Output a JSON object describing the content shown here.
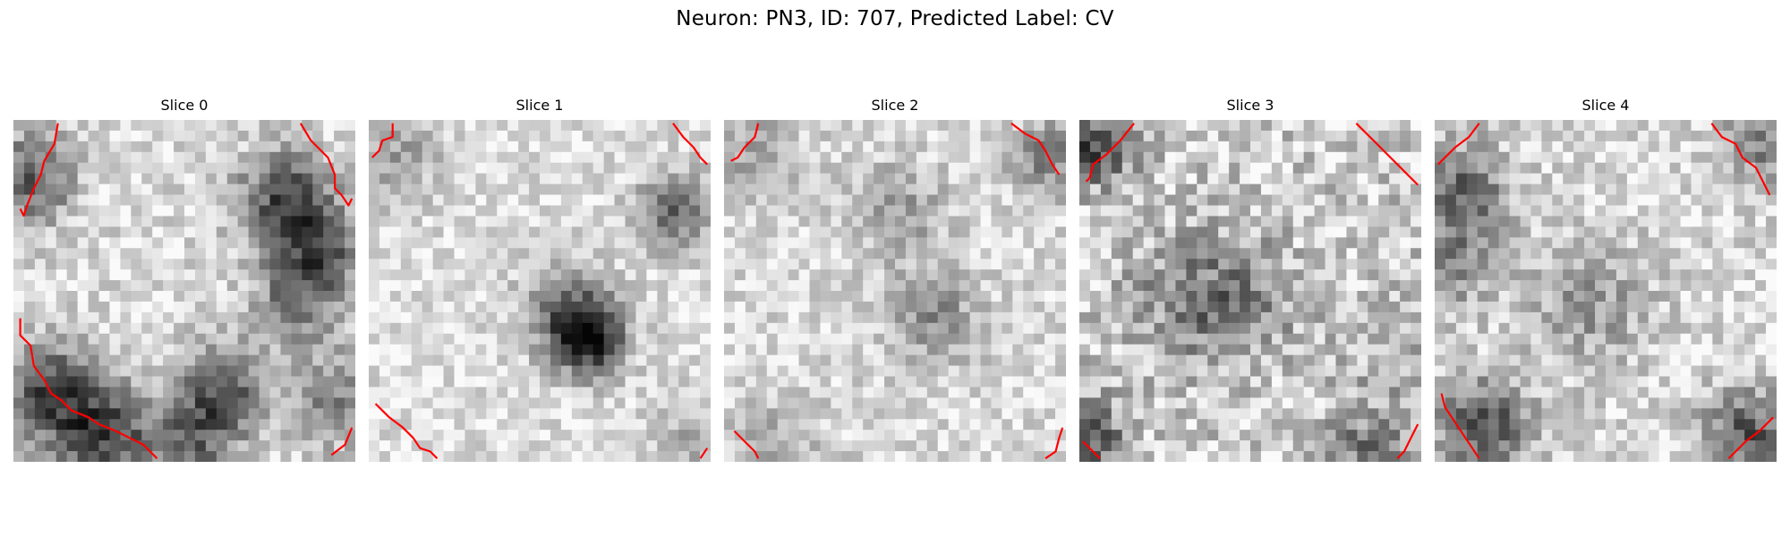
{
  "figure": {
    "title": "Neuron: PN3, ID: 707, Predicted Label: CV",
    "contour_color": "#ff0000"
  },
  "panels": [
    {
      "title": "Slice 0",
      "contours": [
        [
          [
            0.13,
            0.01
          ],
          [
            0.12,
            0.07
          ],
          [
            0.09,
            0.12
          ],
          [
            0.08,
            0.16
          ],
          [
            0.06,
            0.2
          ],
          [
            0.04,
            0.25
          ],
          [
            0.03,
            0.28
          ],
          [
            0.02,
            0.26
          ]
        ],
        [
          [
            0.84,
            0.01
          ],
          [
            0.87,
            0.06
          ],
          [
            0.92,
            0.11
          ],
          [
            0.94,
            0.16
          ],
          [
            0.94,
            0.2
          ],
          [
            0.96,
            0.22
          ],
          [
            0.98,
            0.25
          ],
          [
            0.99,
            0.23
          ]
        ],
        [
          [
            0.02,
            0.58
          ],
          [
            0.02,
            0.63
          ],
          [
            0.05,
            0.66
          ],
          [
            0.06,
            0.72
          ],
          [
            0.09,
            0.76
          ],
          [
            0.11,
            0.8
          ],
          [
            0.14,
            0.82
          ],
          [
            0.17,
            0.85
          ],
          [
            0.22,
            0.87
          ],
          [
            0.25,
            0.89
          ],
          [
            0.3,
            0.91
          ],
          [
            0.34,
            0.93
          ],
          [
            0.38,
            0.95
          ],
          [
            0.4,
            0.97
          ],
          [
            0.42,
            0.99
          ]
        ],
        [
          [
            0.99,
            0.9
          ],
          [
            0.97,
            0.95
          ],
          [
            0.93,
            0.98
          ]
        ]
      ]
    },
    {
      "title": "Slice 1",
      "contours": [
        [
          [
            0.07,
            0.01
          ],
          [
            0.07,
            0.05
          ],
          [
            0.04,
            0.06
          ],
          [
            0.03,
            0.09
          ],
          [
            0.01,
            0.11
          ]
        ],
        [
          [
            0.89,
            0.01
          ],
          [
            0.92,
            0.05
          ],
          [
            0.95,
            0.08
          ],
          [
            0.97,
            0.11
          ],
          [
            0.99,
            0.13
          ]
        ],
        [
          [
            0.02,
            0.83
          ],
          [
            0.06,
            0.87
          ],
          [
            0.1,
            0.9
          ],
          [
            0.13,
            0.93
          ],
          [
            0.15,
            0.96
          ],
          [
            0.18,
            0.97
          ],
          [
            0.2,
            0.99
          ]
        ],
        [
          [
            0.99,
            0.96
          ],
          [
            0.97,
            0.99
          ]
        ]
      ]
    },
    {
      "title": "Slice 2",
      "contours": [
        [
          [
            0.1,
            0.01
          ],
          [
            0.09,
            0.05
          ],
          [
            0.06,
            0.08
          ],
          [
            0.04,
            0.11
          ],
          [
            0.02,
            0.12
          ]
        ],
        [
          [
            0.84,
            0.01
          ],
          [
            0.88,
            0.04
          ],
          [
            0.92,
            0.06
          ],
          [
            0.94,
            0.09
          ],
          [
            0.96,
            0.13
          ],
          [
            0.98,
            0.16
          ]
        ],
        [
          [
            0.03,
            0.91
          ],
          [
            0.06,
            0.94
          ],
          [
            0.09,
            0.97
          ],
          [
            0.1,
            0.99
          ]
        ],
        [
          [
            0.99,
            0.9
          ],
          [
            0.98,
            0.93
          ],
          [
            0.97,
            0.97
          ],
          [
            0.94,
            0.99
          ]
        ]
      ]
    },
    {
      "title": "Slice 3",
      "contours": [
        [
          [
            0.16,
            0.01
          ],
          [
            0.12,
            0.06
          ],
          [
            0.08,
            0.1
          ],
          [
            0.04,
            0.13
          ],
          [
            0.03,
            0.17
          ],
          [
            0.02,
            0.18
          ]
        ],
        [
          [
            0.81,
            0.01
          ],
          [
            0.86,
            0.06
          ],
          [
            0.91,
            0.11
          ],
          [
            0.95,
            0.15
          ],
          [
            0.99,
            0.19
          ]
        ],
        [
          [
            0.01,
            0.94
          ],
          [
            0.04,
            0.97
          ],
          [
            0.06,
            0.99
          ]
        ],
        [
          [
            0.99,
            0.89
          ],
          [
            0.97,
            0.93
          ],
          [
            0.95,
            0.97
          ],
          [
            0.93,
            0.99
          ]
        ]
      ]
    },
    {
      "title": "Slice 4",
      "contours": [
        [
          [
            0.13,
            0.01
          ],
          [
            0.1,
            0.05
          ],
          [
            0.06,
            0.08
          ],
          [
            0.03,
            0.11
          ],
          [
            0.01,
            0.13
          ]
        ],
        [
          [
            0.81,
            0.01
          ],
          [
            0.84,
            0.05
          ],
          [
            0.88,
            0.07
          ],
          [
            0.9,
            0.11
          ],
          [
            0.94,
            0.14
          ],
          [
            0.96,
            0.18
          ],
          [
            0.98,
            0.22
          ]
        ],
        [
          [
            0.02,
            0.8
          ],
          [
            0.03,
            0.84
          ],
          [
            0.05,
            0.87
          ],
          [
            0.07,
            0.9
          ],
          [
            0.09,
            0.93
          ],
          [
            0.11,
            0.96
          ],
          [
            0.13,
            0.99
          ]
        ],
        [
          [
            0.99,
            0.87
          ],
          [
            0.95,
            0.91
          ],
          [
            0.91,
            0.94
          ],
          [
            0.88,
            0.97
          ],
          [
            0.86,
            0.99
          ]
        ]
      ]
    }
  ]
}
